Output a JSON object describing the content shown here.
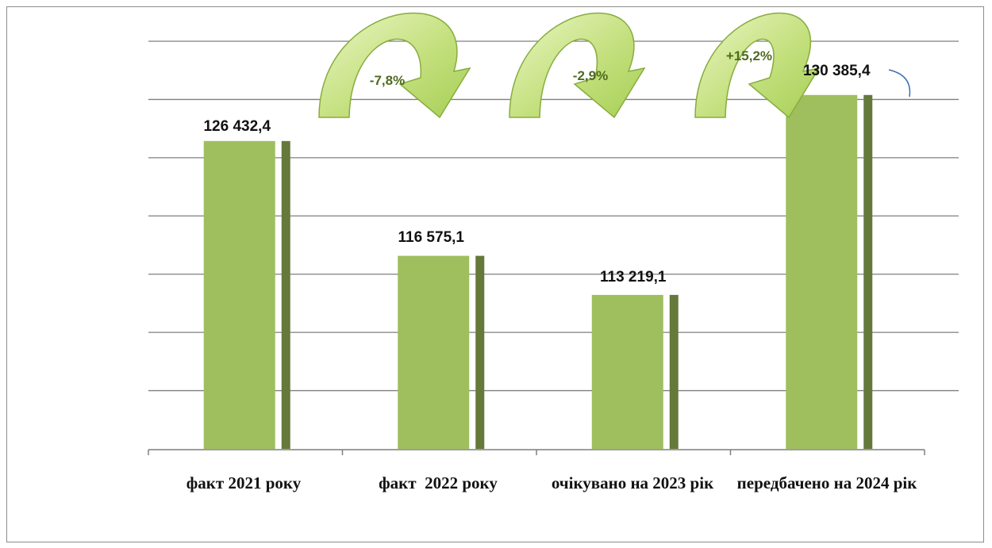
{
  "chart_data": {
    "type": "bar",
    "categories": [
      "факт 2021 року",
      "факт  2022 року",
      "очікувано на 2023 рік",
      "передбачено на 2024 рік"
    ],
    "values": [
      126432.4,
      116575.1,
      113219.1,
      130385.4
    ],
    "value_labels": [
      "126 432,4",
      "116 575,1",
      "113 219,1",
      "130 385,4"
    ],
    "changes": [
      "-7,8%",
      "-2,9%",
      "+15,2%"
    ],
    "ylim": [
      100000,
      135000
    ],
    "grid": true,
    "legend": "none",
    "colors": {
      "bar": "#9fbf5e",
      "bar_shadow": "#65793a",
      "arrow_fill": "#c2e07a",
      "arrow_stroke": "#86ad3c",
      "change_text": "#4f6b1f",
      "gridline": "#7f7f7f"
    }
  }
}
